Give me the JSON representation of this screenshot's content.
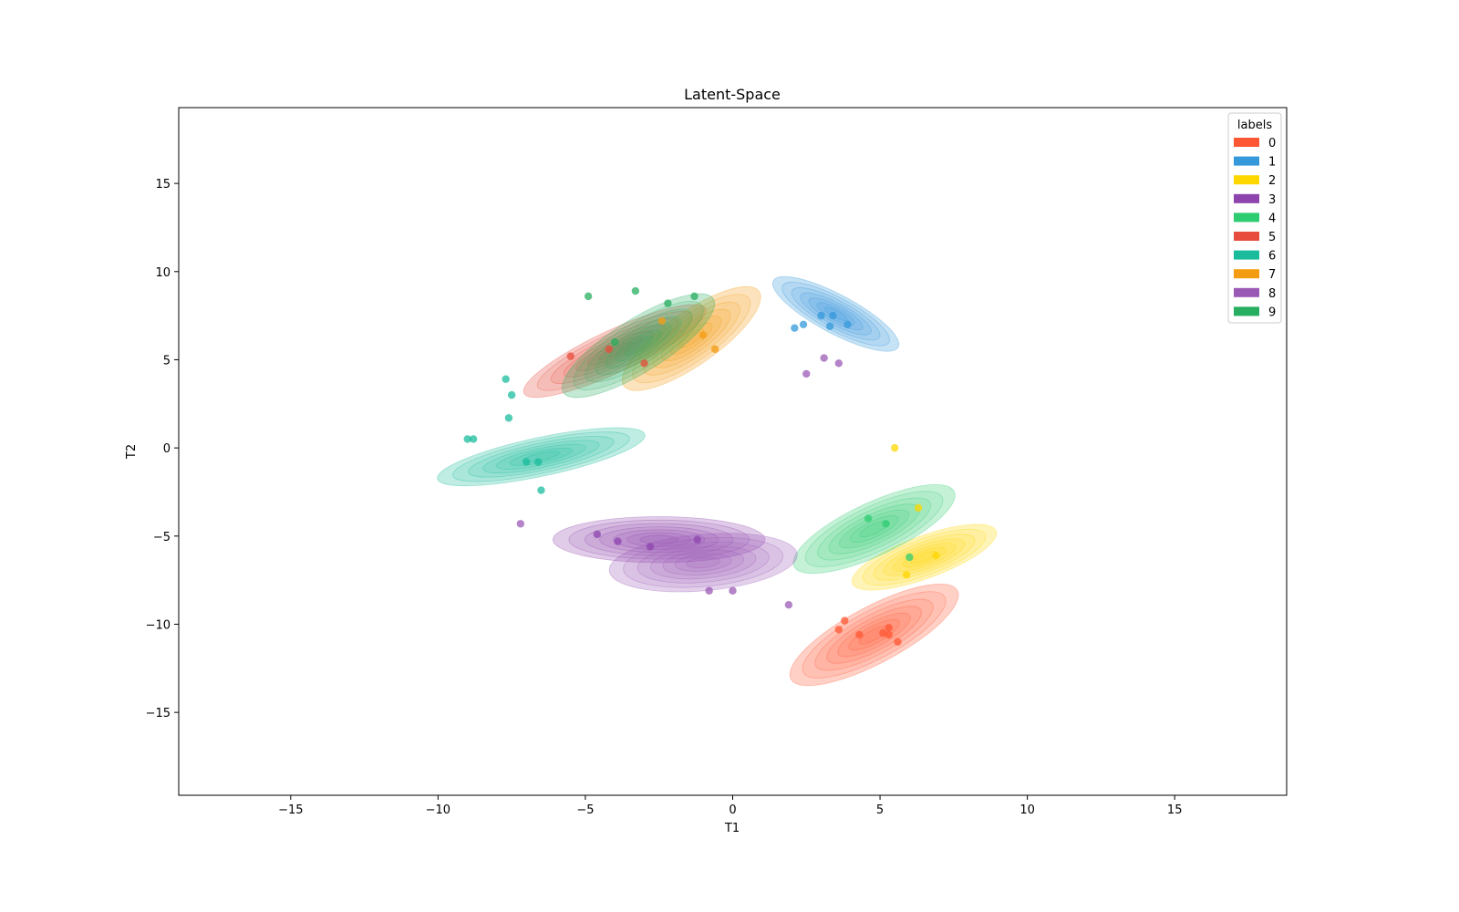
{
  "chart_data": {
    "type": "scatter",
    "title": "Latent-Space",
    "xlabel": "T1",
    "ylabel": "T2",
    "xlim": [
      -18.8,
      18.8
    ],
    "ylim": [
      -19.7,
      19.3
    ],
    "xticks": [
      -15,
      -10,
      -5,
      0,
      5,
      10,
      15
    ],
    "yticks": [
      -15,
      -10,
      -5,
      0,
      5,
      10,
      15
    ],
    "xtick_labels": [
      "−15",
      "−10",
      "−5",
      "0",
      "5",
      "10",
      "15"
    ],
    "ytick_labels": [
      "−15",
      "−10",
      "−5",
      "0",
      "5",
      "10",
      "15"
    ],
    "grid": false,
    "legend": {
      "title": "labels",
      "placement": "top-right"
    },
    "series": [
      {
        "name": "0",
        "color": "#FF5733",
        "center": [
          4.8,
          -10.6
        ],
        "sx": 3.2,
        "sy": 1.6,
        "angle": -28,
        "points": [
          [
            3.6,
            -10.3
          ],
          [
            3.8,
            -9.8
          ],
          [
            4.3,
            -10.6
          ],
          [
            5.1,
            -10.5
          ],
          [
            5.3,
            -10.2
          ],
          [
            5.6,
            -11.0
          ],
          [
            5.3,
            -10.6
          ]
        ]
      },
      {
        "name": "1",
        "color": "#3498DB",
        "center": [
          3.5,
          7.6
        ],
        "sx": 2.4,
        "sy": 1.1,
        "angle": 28,
        "points": [
          [
            3.0,
            7.5
          ],
          [
            3.4,
            7.5
          ],
          [
            3.9,
            7.0
          ],
          [
            3.3,
            6.9
          ],
          [
            2.1,
            6.8
          ],
          [
            2.4,
            7.0
          ]
        ]
      },
      {
        "name": "2",
        "color": "#FFD700",
        "center": [
          6.5,
          -6.2
        ],
        "sx": 2.6,
        "sy": 1.2,
        "angle": -20,
        "points": [
          [
            5.5,
            0.0
          ],
          [
            6.3,
            -3.4
          ],
          [
            6.9,
            -6.1
          ],
          [
            5.9,
            -7.2
          ]
        ]
      },
      {
        "name": "3",
        "color": "#8E44AD",
        "center": [
          -2.5,
          -5.2
        ],
        "sx": 3.6,
        "sy": 1.3,
        "angle": 0,
        "points": [
          [
            -4.6,
            -4.9
          ],
          [
            -3.9,
            -5.3
          ],
          [
            -2.8,
            -5.6
          ],
          [
            -1.2,
            -5.2
          ]
        ]
      },
      {
        "name": "4",
        "color": "#2ECC71",
        "center": [
          4.8,
          -4.6
        ],
        "sx": 3.0,
        "sy": 1.5,
        "angle": -25,
        "points": [
          [
            5.2,
            -4.3
          ],
          [
            6.0,
            -6.2
          ],
          [
            4.6,
            -4.0
          ]
        ]
      },
      {
        "name": "5",
        "color": "#E74C3C",
        "center": [
          -4.0,
          5.5
        ],
        "sx": 3.4,
        "sy": 1.2,
        "angle": -25,
        "points": [
          [
            -5.5,
            5.2
          ],
          [
            -4.2,
            5.6
          ],
          [
            -3.0,
            4.8
          ]
        ]
      },
      {
        "name": "6",
        "color": "#1ABC9C",
        "center": [
          -6.5,
          -0.5
        ],
        "sx": 3.6,
        "sy": 1.1,
        "angle": -12,
        "points": [
          [
            -9.0,
            0.5
          ],
          [
            -8.8,
            0.5
          ],
          [
            -7.0,
            -0.8
          ],
          [
            -6.6,
            -0.8
          ],
          [
            -6.5,
            -2.4
          ],
          [
            -7.5,
            3.0
          ],
          [
            -7.7,
            3.9
          ],
          [
            -7.6,
            1.7
          ]
        ]
      },
      {
        "name": "7",
        "color": "#F39C12",
        "center": [
          -1.4,
          6.2
        ],
        "sx": 2.8,
        "sy": 1.5,
        "angle": -35,
        "points": [
          [
            -1.0,
            6.4
          ],
          [
            -2.4,
            7.2
          ],
          [
            -0.6,
            5.6
          ]
        ]
      },
      {
        "name": "8",
        "color": "#9B59B6",
        "center": [
          -1.0,
          -6.5
        ],
        "sx": 3.2,
        "sy": 1.6,
        "angle": -5,
        "points": [
          [
            -7.2,
            -4.3
          ],
          [
            -0.8,
            -8.1
          ],
          [
            0.0,
            -8.1
          ],
          [
            1.9,
            -8.9
          ],
          [
            3.1,
            5.1
          ],
          [
            3.6,
            4.8
          ],
          [
            2.5,
            4.2
          ]
        ]
      },
      {
        "name": "9",
        "color": "#27AE60",
        "center": [
          -3.2,
          5.8
        ],
        "sx": 3.0,
        "sy": 1.5,
        "angle": -32,
        "points": [
          [
            -4.9,
            8.6
          ],
          [
            -3.3,
            8.9
          ],
          [
            -2.2,
            8.2
          ],
          [
            -1.3,
            8.6
          ],
          [
            -4.0,
            6.0
          ]
        ]
      }
    ]
  }
}
